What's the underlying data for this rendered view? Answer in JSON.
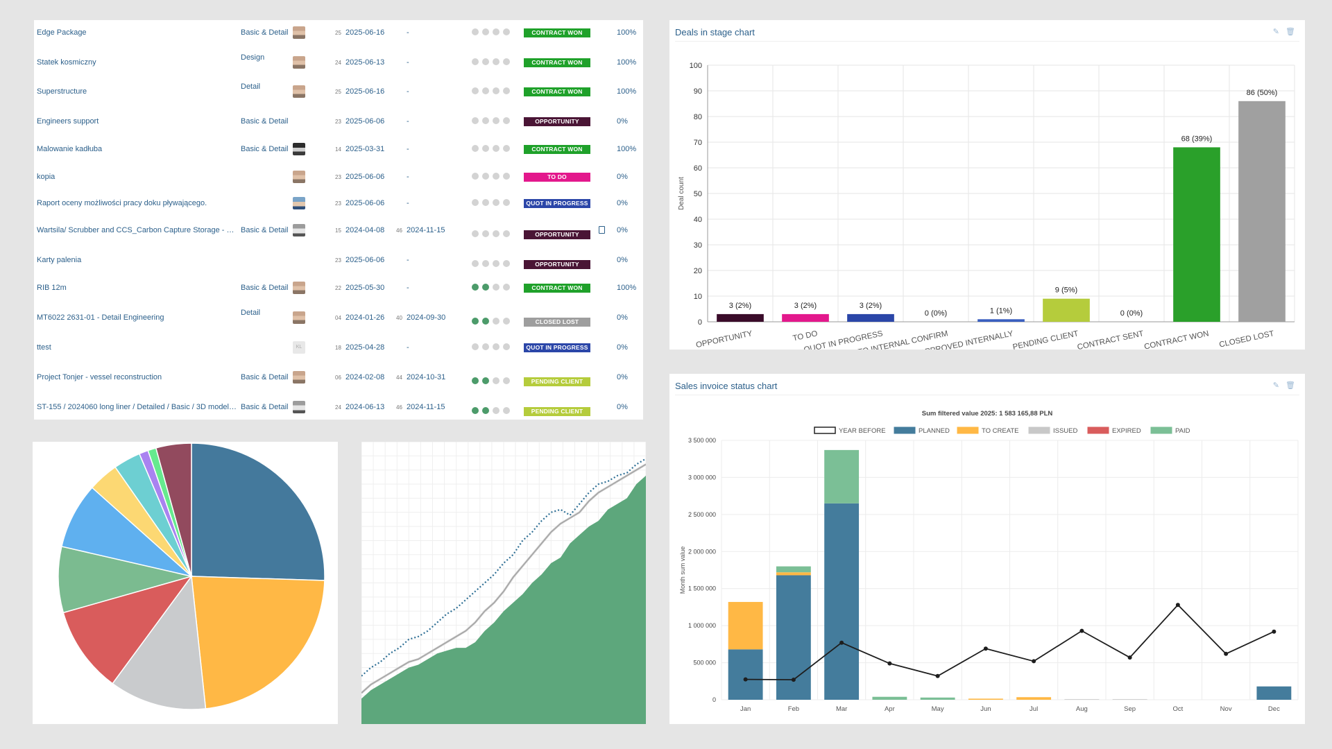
{
  "deals": [
    {
      "name": "Edge Package",
      "scope": "Basic & Detail",
      "avatar": "a1",
      "n1": "25",
      "date1": "2025-06-16",
      "n2": "",
      "date2": "-",
      "dots": 0,
      "badge": "CONTRACT WON",
      "badge_color": "#1fa12a",
      "file": false,
      "pct": "100%"
    },
    {
      "name": "Statek kosmiczny",
      "scope": "Design",
      "avatar": "a1",
      "n1": "24",
      "date1": "2025-06-13",
      "n2": "",
      "date2": "-",
      "dots": 0,
      "badge": "CONTRACT WON",
      "badge_color": "#1fa12a",
      "file": false,
      "pct": "100%"
    },
    {
      "name": "Superstructure",
      "scope": "Detail",
      "avatar": "a1",
      "n1": "25",
      "date1": "2025-06-16",
      "n2": "",
      "date2": "-",
      "dots": 0,
      "badge": "CONTRACT WON",
      "badge_color": "#1fa12a",
      "file": false,
      "pct": "100%"
    },
    {
      "name": "Engineers support",
      "scope": "Basic & Detail",
      "avatar": "",
      "n1": "23",
      "date1": "2025-06-06",
      "n2": "",
      "date2": "-",
      "dots": 0,
      "badge": "OPPORTUNITY",
      "badge_color": "#4a1535",
      "file": false,
      "pct": "0%"
    },
    {
      "name": "Malowanie kadłuba",
      "scope": "Basic & Detail",
      "avatar": "a2",
      "n1": "14",
      "date1": "2025-03-31",
      "n2": "",
      "date2": "-",
      "dots": 0,
      "badge": "CONTRACT WON",
      "badge_color": "#1fa12a",
      "file": false,
      "pct": "100%"
    },
    {
      "name": "kopia",
      "scope": "",
      "avatar": "a1",
      "n1": "23",
      "date1": "2025-06-06",
      "n2": "",
      "date2": "-",
      "dots": 0,
      "badge": "TO DO",
      "badge_color": "#e3188c",
      "file": false,
      "pct": "0%"
    },
    {
      "name": "Raport oceny możliwości pracy doku pływającego.",
      "scope": "",
      "avatar": "a3",
      "n1": "23",
      "date1": "2025-06-06",
      "n2": "",
      "date2": "-",
      "dots": 0,
      "badge": "QUOT IN PROGRESS",
      "badge_color": "#2b46a8",
      "file": false,
      "pct": "0%"
    },
    {
      "name": "Wartsila/ Scrubber and CCS_Carbon Capture Storage - Su...",
      "scope": "Basic & Detail",
      "avatar": "a4",
      "n1": "15",
      "date1": "2024-04-08",
      "n2": "46",
      "date2": "2024-11-15",
      "dots": 0,
      "badge": "OPPORTUNITY",
      "badge_color": "#4a1535",
      "file": true,
      "pct": "0%"
    },
    {
      "name": "Karty palenia",
      "scope": "",
      "avatar": "",
      "n1": "23",
      "date1": "2025-06-06",
      "n2": "",
      "date2": "-",
      "dots": 0,
      "badge": "OPPORTUNITY",
      "badge_color": "#4a1535",
      "file": false,
      "pct": "0%"
    },
    {
      "name": "RIB 12m",
      "scope": "Basic & Detail",
      "avatar": "a1",
      "n1": "22",
      "date1": "2025-05-30",
      "n2": "",
      "date2": "-",
      "dots": 2,
      "badge": "CONTRACT WON",
      "badge_color": "#1fa12a",
      "file": false,
      "pct": "100%"
    },
    {
      "name": "MT6022 2631-01 - Detail Engineering",
      "scope": "Detail",
      "avatar": "a1",
      "n1": "04",
      "date1": "2024-01-26",
      "n2": "40",
      "date2": "2024-09-30",
      "dots": 2,
      "badge": "CLOSED LOST",
      "badge_color": "#9e9e9e",
      "file": false,
      "pct": "0%"
    },
    {
      "name": "ttest",
      "scope": "",
      "avatar": "a5",
      "n1": "18",
      "date1": "2025-04-28",
      "n2": "",
      "date2": "-",
      "dots": 0,
      "badge": "QUOT IN PROGRESS",
      "badge_color": "#2b46a8",
      "file": false,
      "pct": "0%"
    },
    {
      "name": "Project Tonjer - vessel reconstruction",
      "scope": "Basic & Detail",
      "avatar": "a1",
      "n1": "06",
      "date1": "2024-02-08",
      "n2": "44",
      "date2": "2024-10-31",
      "dots": 2,
      "badge": "PENDING CLIENT",
      "badge_color": "#b5cc3c",
      "file": false,
      "pct": "0%"
    },
    {
      "name": "ST-155 / 2024060 long liner / Detailed / Basic / 3D model-I...",
      "scope": "Basic & Detail",
      "avatar": "a4",
      "n1": "24",
      "date1": "2024-06-13",
      "n2": "46",
      "date2": "2024-11-15",
      "dots": 2,
      "badge": "PENDING CLIENT",
      "badge_color": "#b5cc3c",
      "file": false,
      "pct": "0%"
    }
  ],
  "deals_chart": {
    "title": "Deals in stage chart",
    "tools": {
      "edit": "✎",
      "delete": "🗑"
    },
    "chart_data": {
      "type": "bar",
      "ylabel": "Deal count",
      "ylim": [
        0,
        100
      ],
      "yticks": [
        0,
        10,
        20,
        30,
        40,
        50,
        60,
        70,
        80,
        90,
        100
      ],
      "categories": [
        "OPPORTUNITY",
        "TO DO",
        "QUOT IN PROGRESS",
        "TO INTERNAL CONFIRM",
        "APPROVED INTERNALLY",
        "PENDING CLIENT",
        "CONTRACT SENT",
        "CONTRACT WON",
        "CLOSED LOST"
      ],
      "values": [
        3,
        3,
        3,
        0,
        1,
        9,
        0,
        68,
        86
      ],
      "labels": [
        "3 (2%)",
        "3 (2%)",
        "3 (2%)",
        "0 (0%)",
        "1 (1%)",
        "9 (5%)",
        "0 (0%)",
        "68 (39%)",
        "86 (50%)"
      ],
      "colors": [
        "#3a0c2a",
        "#e3188c",
        "#2b46a8",
        "#2b46a8",
        "#3a5fc0",
        "#b5cc3c",
        "#999999",
        "#2aa02a",
        "#a0a0a0"
      ]
    }
  },
  "invoice_chart": {
    "title": "Sales invoice status chart",
    "tools": {
      "edit": "✎",
      "delete": "🗑"
    },
    "chart_data": {
      "type": "bar",
      "stacked": true,
      "title": "Sum filtered value 2025: 1 583 165,88 PLN",
      "ylabel": "Month sum value",
      "ylim": [
        0,
        3500000
      ],
      "yticks": [
        "0",
        "500 000",
        "1 000 000",
        "1 500 000",
        "2 000 000",
        "2 500 000",
        "3 000 000",
        "3 500 000"
      ],
      "categories": [
        "Jan",
        "Feb",
        "Mar",
        "Apr",
        "May",
        "Jun",
        "Jul",
        "Aug",
        "Sep",
        "Oct",
        "Nov",
        "Dec"
      ],
      "legend": [
        "YEAR BEFORE",
        "PLANNED",
        "TO CREATE",
        "ISSUED",
        "EXPIRED",
        "PAID"
      ],
      "legend_colors": [
        "#ffffff",
        "#447c9c",
        "#ffb845",
        "#c8c8c8",
        "#d95c5c",
        "#7bbf96"
      ],
      "series": [
        {
          "name": "PLANNED",
          "color": "#447c9c",
          "values": [
            680000,
            1680000,
            2650000,
            0,
            0,
            0,
            0,
            0,
            0,
            0,
            0,
            180000
          ]
        },
        {
          "name": "TO CREATE",
          "color": "#ffb845",
          "values": [
            640000,
            40000,
            0,
            0,
            0,
            15000,
            35000,
            0,
            0,
            0,
            0,
            0
          ]
        },
        {
          "name": "ISSUED",
          "color": "#c8c8c8",
          "values": [
            0,
            0,
            0,
            0,
            0,
            0,
            0,
            8000,
            8000,
            0,
            0,
            0
          ]
        },
        {
          "name": "EXPIRED",
          "color": "#d95c5c",
          "values": [
            0,
            0,
            0,
            0,
            0,
            0,
            0,
            0,
            0,
            0,
            0,
            0
          ]
        },
        {
          "name": "PAID",
          "color": "#7bbf96",
          "values": [
            0,
            80000,
            720000,
            40000,
            30000,
            0,
            0,
            0,
            0,
            0,
            0,
            0
          ]
        }
      ],
      "line": {
        "name": "YEAR BEFORE",
        "color": "#1e1e1e",
        "values": [
          275000,
          270000,
          770000,
          490000,
          320000,
          690000,
          520000,
          930000,
          570000,
          1280000,
          620000,
          920000
        ]
      }
    }
  },
  "pie_chart": {
    "chart_data": {
      "type": "pie",
      "values": [
        25.5,
        22.8,
        11.8,
        10.5,
        8.0,
        8.0,
        3.7,
        3.3,
        1.1,
        1.0,
        4.3
      ],
      "colors": [
        "#44799c",
        "#ffb845",
        "#c9cbcd",
        "#d95c5c",
        "#7bbb90",
        "#5fb0ef",
        "#fcd873",
        "#6dcfd2",
        "#a983f0",
        "#66ea8e",
        "#924a5e"
      ]
    }
  },
  "area_chart": {
    "chart_data": {
      "type": "area",
      "area_color": "#5da77c",
      "series": [
        {
          "name": "area",
          "values": [
            0.09,
            0.12,
            0.14,
            0.16,
            0.18,
            0.2,
            0.21,
            0.23,
            0.25,
            0.26,
            0.27,
            0.27,
            0.29,
            0.33,
            0.36,
            0.4,
            0.43,
            0.46,
            0.5,
            0.53,
            0.57,
            0.59,
            0.64,
            0.67,
            0.7,
            0.72,
            0.76,
            0.78,
            0.8,
            0.85,
            0.88
          ]
        },
        {
          "name": "dotted",
          "values": [
            0.17,
            0.2,
            0.22,
            0.25,
            0.27,
            0.3,
            0.31,
            0.33,
            0.36,
            0.39,
            0.41,
            0.44,
            0.47,
            0.5,
            0.53,
            0.57,
            0.6,
            0.65,
            0.68,
            0.72,
            0.75,
            0.76,
            0.74,
            0.78,
            0.82,
            0.85,
            0.86,
            0.88,
            0.89,
            0.92,
            0.94
          ]
        },
        {
          "name": "gray",
          "values": [
            0.11,
            0.14,
            0.16,
            0.18,
            0.2,
            0.22,
            0.23,
            0.25,
            0.27,
            0.29,
            0.31,
            0.33,
            0.36,
            0.4,
            0.43,
            0.47,
            0.52,
            0.56,
            0.6,
            0.64,
            0.68,
            0.71,
            0.73,
            0.75,
            0.79,
            0.82,
            0.84,
            0.86,
            0.88,
            0.9,
            0.92
          ]
        }
      ]
    }
  }
}
